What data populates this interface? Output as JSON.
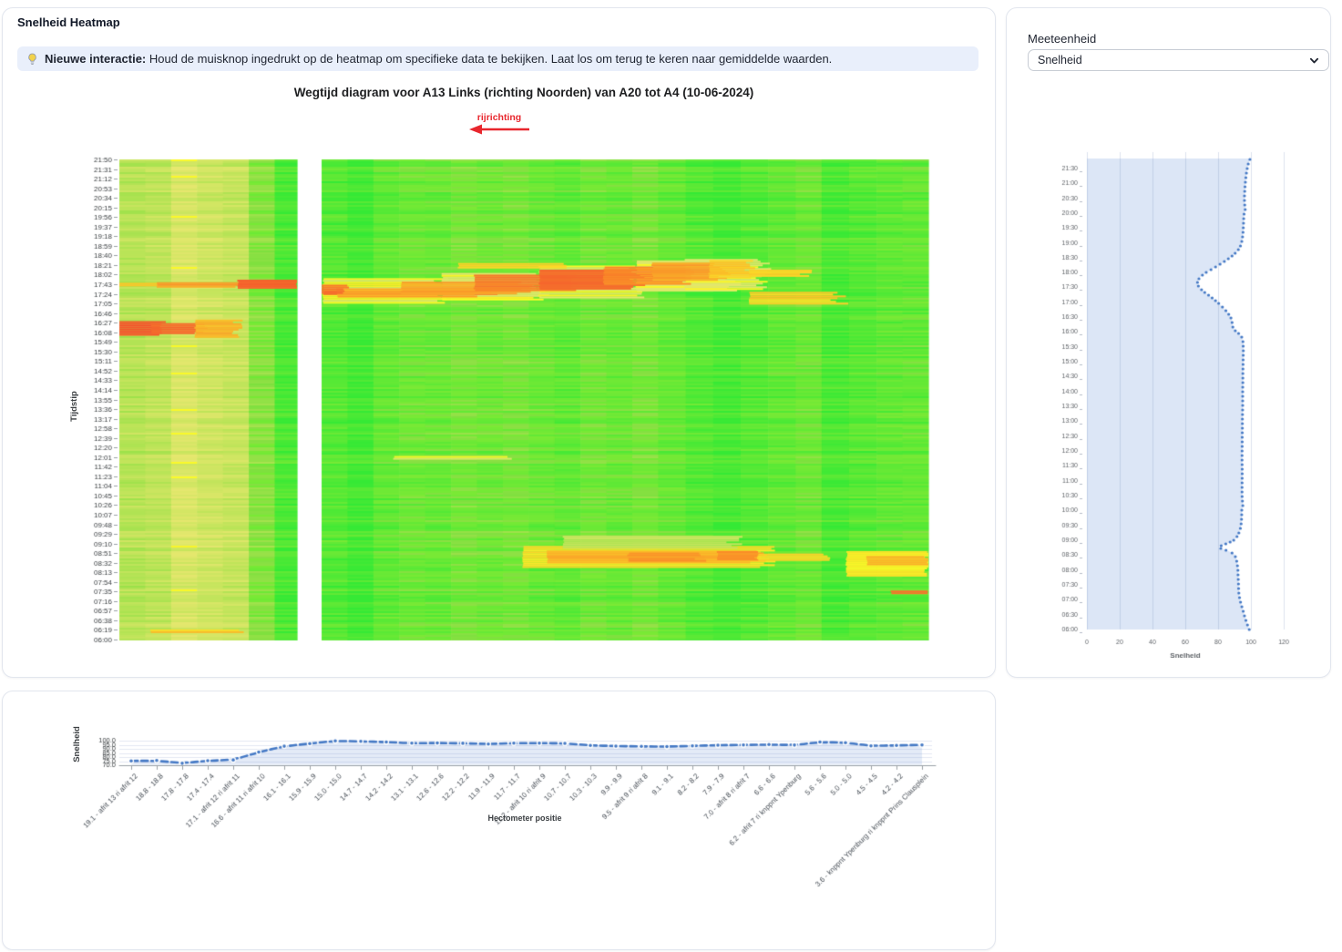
{
  "main_panel": {
    "title": "Snelheid Heatmap",
    "banner_bold": "Nieuwe interactie:",
    "banner_text": "Houd de muisknop ingedrukt op de heatmap om specifieke data te bekijken. Laat los om terug te keren naar gemiddelde waarden.",
    "chart_title": "Wegtijd diagram voor A13 Links (richting Noorden) van A20 tot A4 (10-06-2024)",
    "direction_label": "rijrichting",
    "ylabel": "Tijdstip"
  },
  "side_panel": {
    "label": "Meeteenheid",
    "selected_option": "Snelheid",
    "xlabel": "Snelheid"
  },
  "bottom_panel": {
    "ylabel": "Snelheid",
    "xlabel": "Hectometer positie"
  },
  "colors": {
    "accent_blue": "#4579c5",
    "direction_red": "#e8262d",
    "banner_bg": "#e9effb",
    "area_fill": "rgba(74,124,199,0.15)",
    "profile_fill": "#dce6f6"
  },
  "chart_data": [
    {
      "type": "heatmap",
      "title": "Wegtijd diagram voor A13 Links (richting Noorden) van A20 tot A4 (10-06-2024)",
      "ylabel": "Tijdstip",
      "direction_label": "rijrichting",
      "time_range": [
        "06:00",
        "21:50"
      ],
      "y_ticks": [
        "21:50",
        "21:31",
        "21:12",
        "20:53",
        "20:34",
        "20:15",
        "19:56",
        "19:37",
        "19:18",
        "18:59",
        "18:40",
        "18:21",
        "18:02",
        "17:43",
        "17:24",
        "17:05",
        "16:46",
        "16:27",
        "16:08",
        "15:49",
        "15:30",
        "15:11",
        "14:52",
        "14:33",
        "14:14",
        "13:55",
        "13:36",
        "13:17",
        "12:58",
        "12:39",
        "12:20",
        "12:01",
        "11:42",
        "11:23",
        "11:04",
        "10:45",
        "10:26",
        "10:07",
        "09:48",
        "09:29",
        "09:10",
        "08:51",
        "08:32",
        "08:13",
        "07:54",
        "07:35",
        "07:16",
        "06:57",
        "06:38",
        "06:19",
        "06:00"
      ],
      "blocks": [
        [
          0,
          0.2196
        ],
        [
          0.25,
          1.0
        ]
      ],
      "columns": [
        [
          0.0,
          0.032,
          83
        ],
        [
          0.032,
          0.064,
          81
        ],
        [
          0.064,
          0.096,
          74
        ],
        [
          0.096,
          0.128,
          77
        ],
        [
          0.128,
          0.16,
          79
        ],
        [
          0.16,
          0.192,
          93
        ],
        [
          0.192,
          0.2196,
          106
        ],
        [
          0.25,
          0.282,
          104
        ],
        [
          0.282,
          0.314,
          108
        ],
        [
          0.314,
          0.346,
          101
        ],
        [
          0.346,
          0.378,
          98
        ],
        [
          0.378,
          0.41,
          99
        ],
        [
          0.41,
          0.442,
          96
        ],
        [
          0.442,
          0.474,
          98
        ],
        [
          0.474,
          0.506,
          96
        ],
        [
          0.506,
          0.538,
          99
        ],
        [
          0.538,
          0.57,
          101
        ],
        [
          0.57,
          0.602,
          97
        ],
        [
          0.602,
          0.634,
          99
        ],
        [
          0.634,
          0.666,
          96
        ],
        [
          0.666,
          0.7,
          100
        ],
        [
          0.7,
          0.734,
          104
        ],
        [
          0.734,
          0.768,
          107
        ],
        [
          0.768,
          0.802,
          104
        ],
        [
          0.802,
          0.836,
          101
        ],
        [
          0.836,
          0.868,
          98
        ],
        [
          0.868,
          0.902,
          106
        ],
        [
          0.902,
          0.936,
          103
        ],
        [
          0.936,
          0.968,
          101
        ],
        [
          0.968,
          1.0,
          100
        ]
      ],
      "events": [
        [
          "17:08",
          "17:55",
          0.253,
          0.4,
          68,
          10
        ],
        [
          "17:12",
          "18:05",
          0.4,
          0.52,
          70,
          10
        ],
        [
          "17:18",
          "18:20",
          0.52,
          0.64,
          70,
          10
        ],
        [
          "17:30",
          "18:30",
          0.64,
          0.76,
          70,
          10
        ],
        [
          "17:35",
          "18:33",
          0.7,
          0.795,
          72,
          10
        ],
        [
          "17:05",
          "17:28",
          0.78,
          0.89,
          58,
          10
        ],
        [
          "08:25",
          "09:05",
          0.5,
          0.8,
          62,
          12
        ],
        [
          "08:08",
          "08:55",
          0.9,
          1.0,
          66,
          8
        ],
        [
          "09:03",
          "09:25",
          0.55,
          0.76,
          80,
          10
        ],
        [
          "17:22",
          "17:29",
          0.253,
          0.46,
          24,
          8
        ],
        [
          "17:19",
          "17:35",
          0.27,
          0.45,
          40,
          10
        ],
        [
          "17:25",
          "17:48",
          0.35,
          0.5,
          42,
          10
        ],
        [
          "17:30",
          "18:02",
          0.44,
          0.56,
          30,
          9
        ],
        [
          "17:34",
          "18:12",
          0.52,
          0.64,
          22,
          9
        ],
        [
          "17:42",
          "18:18",
          0.6,
          0.7,
          33,
          10
        ],
        [
          "17:50",
          "18:26",
          0.66,
          0.745,
          42,
          10
        ],
        [
          "17:56",
          "18:31",
          0.73,
          0.78,
          54,
          8
        ],
        [
          "17:58",
          "18:12",
          0.78,
          0.85,
          56,
          8
        ],
        [
          "18:16",
          "18:25",
          0.42,
          0.55,
          60,
          8
        ],
        [
          "17:26",
          "17:42",
          0.25,
          0.28,
          26,
          4
        ],
        [
          "16:02",
          "16:30",
          0.0,
          0.056,
          14,
          6
        ],
        [
          "16:06",
          "16:26",
          0.04,
          0.1,
          22,
          8
        ],
        [
          "15:57",
          "16:33",
          0.095,
          0.146,
          46,
          6
        ],
        [
          "17:41",
          "17:46",
          0.0,
          0.05,
          55,
          3
        ],
        [
          "17:39",
          "17:47",
          0.048,
          0.148,
          42,
          5
        ],
        [
          "17:35",
          "17:52",
          0.148,
          0.22,
          20,
          5
        ],
        [
          "06:16",
          "06:20",
          0.04,
          0.15,
          55,
          4
        ],
        [
          "11:58",
          "12:03",
          0.34,
          0.48,
          72,
          6
        ],
        [
          "08:32",
          "08:56",
          0.53,
          0.79,
          44,
          10
        ],
        [
          "08:36",
          "08:52",
          0.63,
          0.72,
          38,
          8
        ],
        [
          "08:38",
          "08:55",
          0.74,
          0.79,
          36,
          6
        ],
        [
          "08:38",
          "08:50",
          0.79,
          0.87,
          60,
          8
        ],
        [
          "08:27",
          "08:45",
          0.925,
          1.0,
          48,
          6
        ],
        [
          "07:32",
          "07:37",
          0.955,
          1.0,
          26,
          4
        ]
      ]
    },
    {
      "type": "scatter",
      "orientation": "vertical",
      "xlabel": "Snelheid",
      "x_ticks": [
        0,
        20,
        40,
        60,
        80,
        100,
        120
      ],
      "xlim": [
        0,
        130
      ],
      "time_range": [
        "06:00",
        "21:50"
      ],
      "y_ticks": [
        "21:30",
        "21:00",
        "20:30",
        "20:00",
        "19:30",
        "19:00",
        "18:30",
        "18:00",
        "17:30",
        "17:00",
        "16:30",
        "16:00",
        "15:30",
        "15:00",
        "14:30",
        "14:00",
        "13:30",
        "13:00",
        "12:30",
        "12:00",
        "11:30",
        "11:00",
        "10:30",
        "10:00",
        "09:30",
        "09:00",
        "08:30",
        "08:00",
        "07:30",
        "07:00",
        "06:30",
        "06:00"
      ],
      "points": [
        [
          "06:00",
          99.0
        ],
        [
          "06:12",
          97.6
        ],
        [
          "06:24",
          96.4
        ],
        [
          "06:36",
          95.4
        ],
        [
          "06:48",
          94.3
        ],
        [
          "07:00",
          93.3
        ],
        [
          "07:12",
          92.7
        ],
        [
          "07:24",
          92.5
        ],
        [
          "07:36",
          92.4
        ],
        [
          "07:48",
          92.2
        ],
        [
          "08:00",
          92.1
        ],
        [
          "08:12",
          91.7
        ],
        [
          "08:24",
          91.0
        ],
        [
          "08:32",
          89.8
        ],
        [
          "08:38",
          86.5
        ],
        [
          "08:43",
          82.0
        ],
        [
          "08:46",
          80.0
        ],
        [
          "08:50",
          82.5
        ],
        [
          "08:55",
          86.5
        ],
        [
          "09:00",
          89.5
        ],
        [
          "09:06",
          91.3
        ],
        [
          "09:14",
          92.6
        ],
        [
          "09:24",
          93.6
        ],
        [
          "09:36",
          94.2
        ],
        [
          "09:48",
          94.4
        ],
        [
          "10:00",
          94.4
        ],
        [
          "10:12",
          95.2
        ],
        [
          "10:22",
          94.7
        ],
        [
          "10:36",
          94.6
        ],
        [
          "10:52",
          94.6
        ],
        [
          "11:08",
          94.7
        ],
        [
          "11:24",
          94.7
        ],
        [
          "11:40",
          94.6
        ],
        [
          "11:56",
          94.6
        ],
        [
          "12:12",
          94.7
        ],
        [
          "12:28",
          94.7
        ],
        [
          "12:44",
          94.8
        ],
        [
          "13:00",
          94.8
        ],
        [
          "13:16",
          94.9
        ],
        [
          "13:32",
          95.0
        ],
        [
          "13:48",
          95.0
        ],
        [
          "14:04",
          95.0
        ],
        [
          "14:20",
          95.1
        ],
        [
          "14:36",
          95.1
        ],
        [
          "14:52",
          95.2
        ],
        [
          "15:08",
          95.3
        ],
        [
          "15:24",
          95.4
        ],
        [
          "15:40",
          95.2
        ],
        [
          "15:50",
          94.4
        ],
        [
          "15:58",
          92.3
        ],
        [
          "16:04",
          90.0
        ],
        [
          "16:10",
          89.0
        ],
        [
          "16:18",
          88.6
        ],
        [
          "16:26",
          88.2
        ],
        [
          "16:32",
          87.3
        ],
        [
          "16:40",
          85.6
        ],
        [
          "16:48",
          83.4
        ],
        [
          "16:56",
          81.0
        ],
        [
          "17:04",
          78.2
        ],
        [
          "17:12",
          75.2
        ],
        [
          "17:20",
          71.8
        ],
        [
          "17:28",
          69.0
        ],
        [
          "17:36",
          67.3
        ],
        [
          "17:44",
          67.6
        ],
        [
          "17:52",
          69.3
        ],
        [
          "18:00",
          72.6
        ],
        [
          "18:08",
          76.8
        ],
        [
          "18:16",
          80.8
        ],
        [
          "18:24",
          84.6
        ],
        [
          "18:32",
          88.0
        ],
        [
          "18:40",
          90.8
        ],
        [
          "18:48",
          92.8
        ],
        [
          "18:56",
          94.0
        ],
        [
          "19:08",
          94.8
        ],
        [
          "19:24",
          95.3
        ],
        [
          "19:40",
          95.5
        ],
        [
          "19:56",
          95.7
        ],
        [
          "20:08",
          96.6
        ],
        [
          "20:20",
          96.1
        ],
        [
          "20:36",
          96.1
        ],
        [
          "20:52",
          96.4
        ],
        [
          "21:08",
          96.8
        ],
        [
          "21:24",
          97.4
        ],
        [
          "21:38",
          98.3
        ],
        [
          "21:50",
          99.6
        ]
      ]
    },
    {
      "type": "line",
      "xlabel": "Hectometer positie",
      "ylabel": "Snelheid",
      "y_ticks": [
        70,
        75,
        80,
        85,
        90,
        95,
        100
      ],
      "ylim": [
        70,
        101
      ],
      "categories": [
        "19.1 - afrit 13 ri afrit 12",
        "18.8 - 18.8",
        "17.8 - 17.8",
        "17.4 - 17.4",
        "17.1 - afrit 12 ri afrit 11",
        "16.6 - afrit 11 ri afrit 10",
        "16.1 - 16.1",
        "15.9 - 15.9",
        "15.0 - 15.0",
        "14.7 - 14.7",
        "14.2 - 14.2",
        "13.1 - 13.1",
        "12.6 - 12.6",
        "12.2 - 12.2",
        "11.9 - 11.9",
        "11.7 - 11.7",
        "11.2 - afrit 10 ri afrit 9",
        "10.7 - 10.7",
        "10.3 - 10.3",
        "9.9 - 9.9",
        "9.5 - afrit 9 ri afrit 8",
        "9.1 - 9.1",
        "8.2 - 8.2",
        "7.9 - 7.9",
        "7.0 - afrit 8 ri afrit 7",
        "6.6 - 6.6",
        "6.2 - afrit 7 ri knppnt Ypenburg",
        "5.6 - 5.6",
        "5.0 - 5.0",
        "4.5 - 4.5",
        "4.2 - 4.2",
        "3.6 - knppnt Ypenburg ri knppnt Prins Clausplein"
      ],
      "values": [
        75.3,
        75.8,
        72.4,
        75.6,
        76.5,
        86.0,
        93.2,
        96.4,
        99.8,
        99.1,
        98.3,
        96.9,
        97.1,
        96.8,
        95.9,
        96.9,
        97.0,
        96.7,
        94.2,
        93.4,
        93.0,
        92.7,
        93.6,
        94.4,
        94.8,
        95.2,
        94.6,
        98.3,
        97.5,
        93.6,
        94.2,
        94.8
      ]
    }
  ]
}
